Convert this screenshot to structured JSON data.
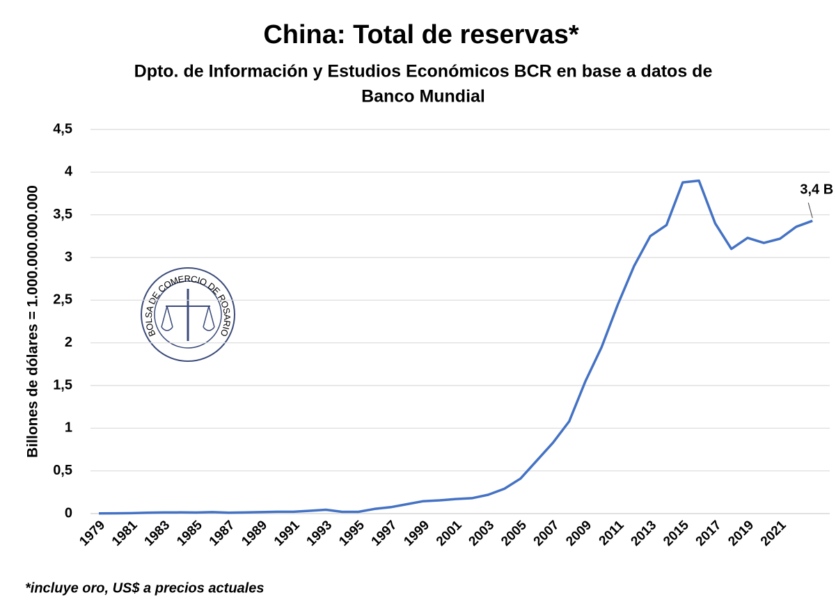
{
  "chart_data": {
    "type": "line",
    "title": "China: Total de reservas*",
    "subtitle": [
      "Dpto. de Información y Estudios Económicos BCR en base a datos de",
      "Banco Mundial"
    ],
    "y_label": "Billones de dólares = 1.000.000.000.000",
    "footnote": "*incluye oro, US$ a precios actuales",
    "logo_text": "BOLSA DE COMERCIO DE ROSARIO",
    "annotation": "3,4 B",
    "categories": [
      "1979",
      null,
      "1981",
      null,
      "1983",
      null,
      "1985",
      null,
      "1987",
      null,
      "1989",
      null,
      "1991",
      null,
      "1993",
      null,
      "1995",
      null,
      "1997",
      null,
      "1999",
      null,
      "2001",
      null,
      "2003",
      null,
      "2005",
      null,
      "2007",
      null,
      "2009",
      null,
      "2011",
      null,
      "2013",
      null,
      "2015",
      null,
      "2017",
      null,
      "2019",
      null,
      "2021",
      null,
      null
    ],
    "series": [
      {
        "name": "Total de reservas",
        "color": "#4472c4",
        "values": [
          0.002,
          0.003,
          0.005,
          0.011,
          0.013,
          0.014,
          0.012,
          0.017,
          0.01,
          0.013,
          0.017,
          0.021,
          0.021,
          0.033,
          0.045,
          0.02,
          0.02,
          0.055,
          0.075,
          0.11,
          0.145,
          0.155,
          0.17,
          0.18,
          0.22,
          0.29,
          0.41,
          0.62,
          0.83,
          1.08,
          1.55,
          1.95,
          2.45,
          2.9,
          3.25,
          3.38,
          3.88,
          3.9,
          3.4,
          3.1,
          3.23,
          3.17,
          3.22,
          3.36,
          3.43
        ]
      }
    ],
    "ylim": [
      0,
      4.5
    ],
    "yticks": [
      0,
      {
        "value": 0.5,
        "label": "0,5"
      },
      1,
      {
        "value": 1.5,
        "label": "1,5"
      },
      2,
      {
        "value": 2.5,
        "label": "2,5"
      },
      3,
      {
        "value": 3.5,
        "label": "3,5"
      },
      4,
      {
        "value": 4.5,
        "label": "4,5"
      }
    ],
    "grid": true
  }
}
